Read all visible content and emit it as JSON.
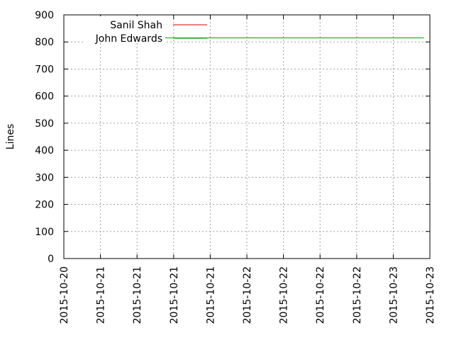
{
  "chart_data": {
    "type": "line",
    "title": "",
    "xlabel": "",
    "ylabel": "Lines",
    "ylim": [
      0,
      900
    ],
    "yticks": [
      0,
      100,
      200,
      300,
      400,
      500,
      600,
      700,
      800,
      900
    ],
    "xlim": [
      "2015-10-20 00:00",
      "2015-10-23 10:00"
    ],
    "xtick_labels": [
      "2015-10-20",
      "2015-10-21",
      "2015-10-21",
      "2015-10-21",
      "2015-10-21",
      "2015-10-22",
      "2015-10-22",
      "2015-10-22",
      "2015-10-22",
      "2015-10-23",
      "2015-10-23"
    ],
    "grid": true,
    "legend_position": "top-left",
    "series": [
      {
        "name": "Sanil Shah",
        "color": "#cc0000",
        "points": [
          {
            "x": "2015-10-23 08:20",
            "y": 0
          },
          {
            "x": "2015-10-23 08:40",
            "y": 0
          }
        ]
      },
      {
        "name": "John Edwards",
        "color": "#00a000",
        "points": [
          {
            "x": "2015-10-20 05:00",
            "y": 815
          },
          {
            "x": "2015-10-23 08:40",
            "y": 815
          }
        ]
      }
    ]
  }
}
